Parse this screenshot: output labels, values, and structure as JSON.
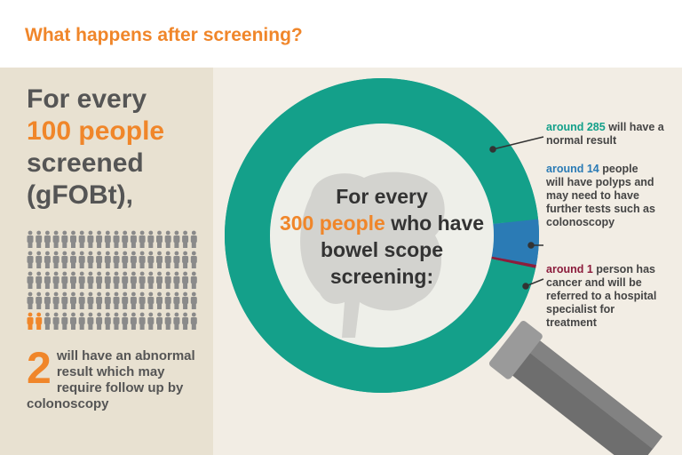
{
  "header": {
    "title": "What happens after screening?"
  },
  "left": {
    "line1": "For every",
    "count": 100,
    "count_unit": "people",
    "line3": "screened",
    "line4": "(gFOBt),",
    "abnormal_count": 2,
    "abnormal_text": "will have an abnormal result which may require follow up by colonoscopy"
  },
  "center": {
    "line1": "For every",
    "count": 300,
    "count_unit": "people",
    "rest": "who have bowel scope screening:"
  },
  "ring": {
    "segments": [
      {
        "prefix": "around",
        "value": 14,
        "text": "people will have polyps and may need to have further tests such as colonoscopy",
        "color": "#2b7bb5"
      },
      {
        "prefix": "around",
        "value": 1,
        "text": "person has cancer and will be referred to a hospital specialist for treatment",
        "color": "#8c1c3c"
      },
      {
        "prefix": "around",
        "value": 285,
        "text": "will have a normal result",
        "color": "#14a08a"
      }
    ]
  }
}
